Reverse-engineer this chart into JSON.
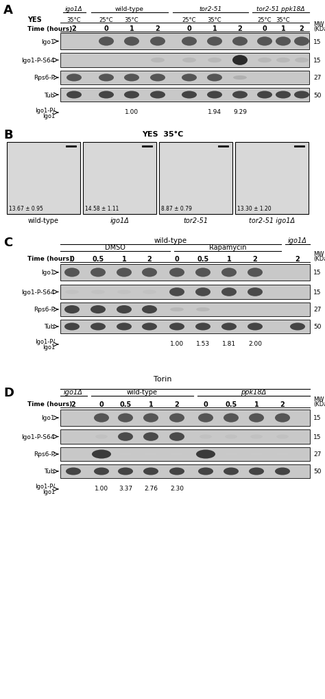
{
  "panel_A": {
    "label": "A",
    "strain_names": [
      "igo1Δ",
      "wild-type",
      "tor2-51",
      "tor2-51 ppk18Δ"
    ],
    "yes_label": "YES",
    "time_label": "Time (hours)",
    "time_points_A": [
      "2",
      "0",
      "1",
      "2",
      "0",
      "1",
      "2",
      "0",
      "1",
      "2"
    ],
    "mw_values": [
      "15",
      "15",
      "27",
      "50"
    ],
    "bands": [
      "Igo1",
      "Igo1-P-S64",
      "Rps6-P",
      "Tub"
    ],
    "ratio_label_line1": "Igo1-P/",
    "ratio_label_line2": "Igo1",
    "ratio_values_A": [
      "1.00",
      "1.94",
      "9.29"
    ]
  },
  "panel_B": {
    "label": "B",
    "title": "YES  35°C",
    "subtitles": [
      "wild-type",
      "igo1Δ",
      "tor2-51",
      "tor2-51 igo1Δ"
    ],
    "values": [
      "13.67 ± 0.95",
      "14.58 ± 1.11",
      "8.87 ± 0.79",
      "13.30 ± 1.20"
    ]
  },
  "panel_C": {
    "label": "C",
    "strain_names": [
      "wild-type",
      "igo1Δ"
    ],
    "sub_labels": [
      "DMSO",
      "Rapamycin"
    ],
    "time_label": "Time (hours)",
    "time_points_C": [
      "0",
      "0.5",
      "1",
      "2",
      "0",
      "0.5",
      "1",
      "2",
      "2"
    ],
    "mw_values": [
      "15",
      "15",
      "27",
      "50"
    ],
    "bands": [
      "Igo1",
      "Igo1-P-S64",
      "Rps6-P",
      "Tub"
    ],
    "ratio_label_line1": "Igo1-P/",
    "ratio_label_line2": "Igo1",
    "ratio_values_C": [
      "1.00",
      "1.53",
      "1.81",
      "2.00"
    ]
  },
  "panel_D": {
    "label": "D",
    "title": "Torin",
    "strain_names": [
      "igo1Δ",
      "wild-type",
      "ppk18Δ"
    ],
    "time_label": "Time (hours)",
    "time_points_D": [
      "2",
      "0",
      "0.5",
      "1",
      "2",
      "0",
      "0.5",
      "1",
      "2"
    ],
    "mw_values": [
      "15",
      "15",
      "27",
      "50"
    ],
    "bands": [
      "Igo1",
      "Igo1-P-S64",
      "Rps6-P",
      "Tub"
    ],
    "ratio_label_line1": "Igo1-P/",
    "ratio_label_line2": "Igo1",
    "ratio_values_D": [
      "1.00",
      "3.37",
      "2.76",
      "2.30"
    ]
  },
  "blot_bg_light": "#c8c8c8",
  "blot_bg_dark": "#b0b0b0",
  "band_dark": "#404040",
  "band_medium": "#606060",
  "band_light": "#909090"
}
